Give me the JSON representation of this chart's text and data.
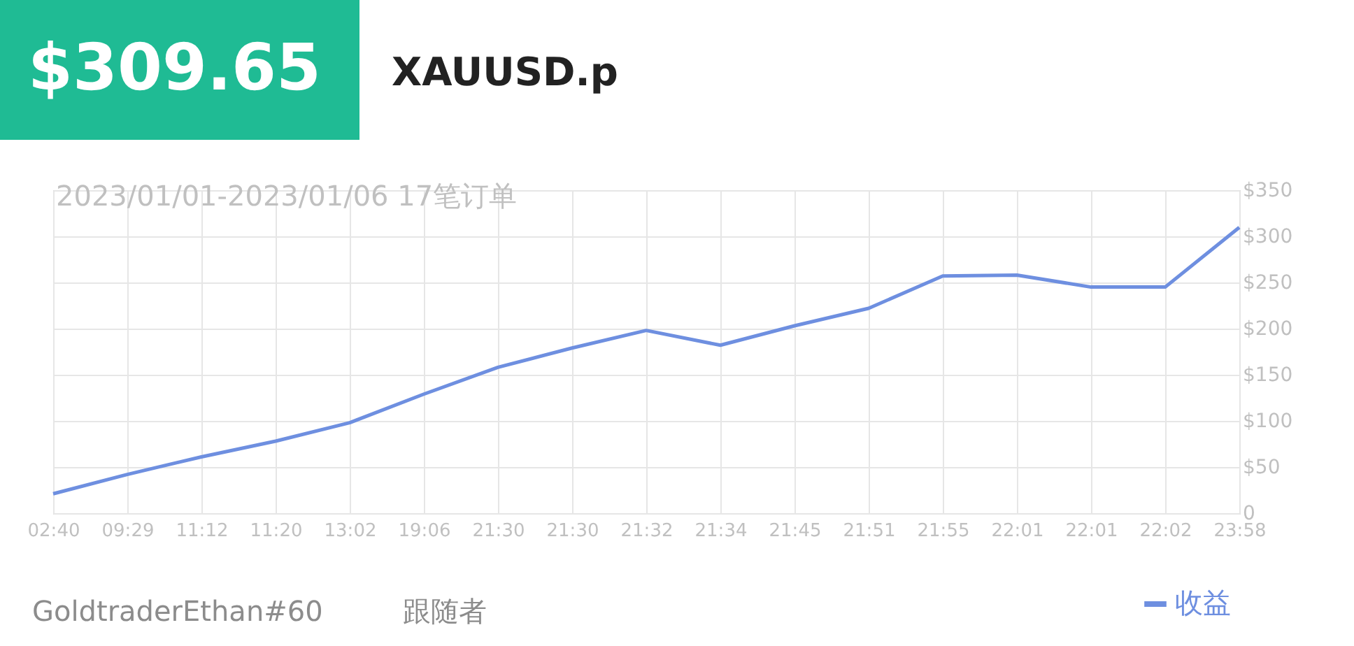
{
  "chart_data": {
    "type": "line",
    "title": "XAUUSD.p",
    "subtitle": "2023/01/01-2023/01/06 17笔订单",
    "annotations": [
      "$309.65",
      "GoldtraderEthan#60",
      "跟随者"
    ],
    "categories": [
      "02:40",
      "09:29",
      "11:12",
      "11:20",
      "13:02",
      "19:06",
      "21:30",
      "21:30",
      "21:32",
      "21:34",
      "21:45",
      "21:51",
      "21:55",
      "22:01",
      "22:01",
      "22:02",
      "23:58"
    ],
    "series": [
      {
        "name": "收益",
        "color": "#6e8fe0",
        "values": [
          21,
          42,
          61,
          78,
          98,
          129,
          158,
          179,
          198,
          182,
          203,
          222,
          257,
          258,
          245,
          245,
          309.65
        ]
      }
    ],
    "ylim": [
      0,
      350
    ],
    "yticks": [
      0,
      {
        "value": 50,
        "label": "$50"
      },
      {
        "value": 100,
        "label": "$100"
      },
      {
        "value": 150,
        "label": "$150"
      },
      {
        "value": 200,
        "label": "$200"
      },
      {
        "value": 250,
        "label": "$250"
      },
      {
        "value": 300,
        "label": "$300"
      },
      {
        "value": 350,
        "label": "$350"
      }
    ],
    "grid": true,
    "legend": "bottom right",
    "marker": "none",
    "line_style": "solid"
  }
}
